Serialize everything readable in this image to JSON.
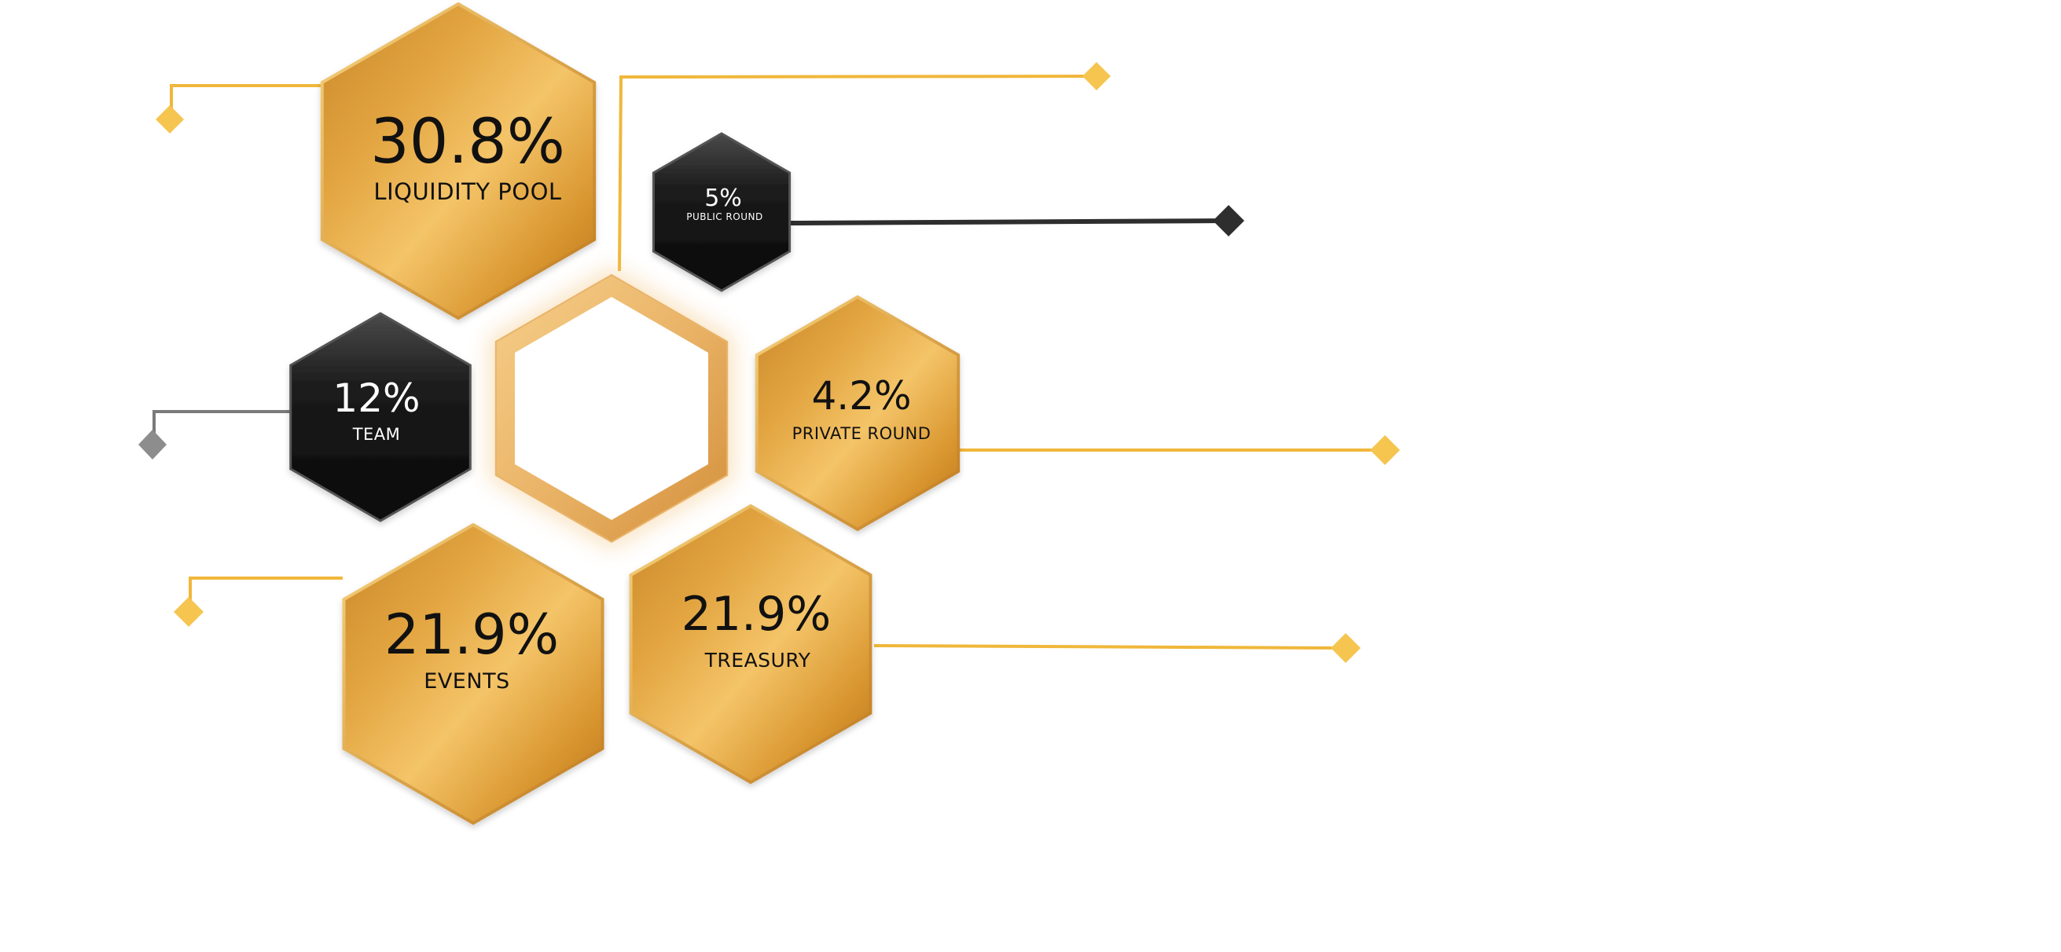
{
  "segments": [
    {
      "key": "liquidity",
      "percent": "30.8%",
      "label": "LIQUIDITY POOL",
      "style": "gold"
    },
    {
      "key": "public",
      "percent": "5%",
      "label": "PUBLIC ROUND",
      "style": "black"
    },
    {
      "key": "team",
      "percent": "12%",
      "label": "TEAM",
      "style": "black"
    },
    {
      "key": "private",
      "percent": "4.2%",
      "label": "PRIVATE ROUND",
      "style": "gold"
    },
    {
      "key": "events",
      "percent": "21.9%",
      "label": "EVENTS",
      "style": "gold"
    },
    {
      "key": "treasury",
      "percent": "21.9%",
      "label": "TREASURY",
      "style": "gold"
    }
  ],
  "center": {
    "style": "empty-gold-ring"
  },
  "colors": {
    "gold_light": "#f5c96a",
    "gold_mid": "#e0a23a",
    "gold_dark": "#b8741b",
    "gold_line": "#f0b73a",
    "black_light": "#4a4a4a",
    "black_dark": "#0c0c0c",
    "line_dark": "#2e2e2e",
    "line_gray": "#7a7a7a",
    "text_dark": "#111111",
    "text_light": "#ffffff"
  }
}
